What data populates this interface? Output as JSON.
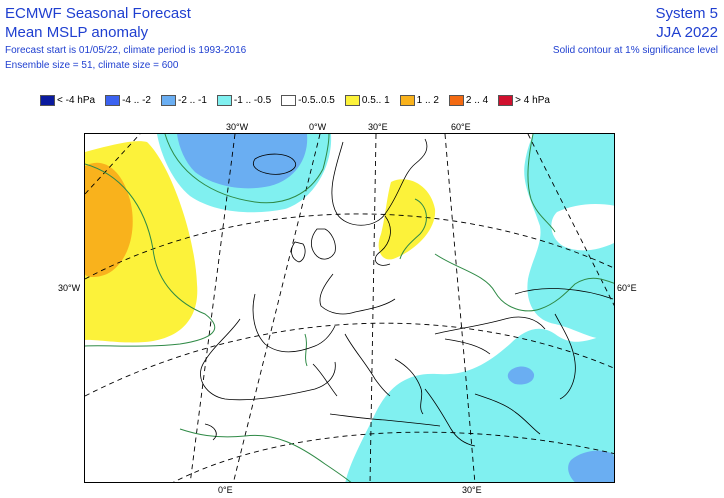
{
  "header": {
    "title": "ECMWF Seasonal Forecast",
    "subtitle": "Mean MSLP anomaly",
    "forecast_info": "Forecast start is 01/05/22, climate period is 1993-2016",
    "ensemble_info": "Ensemble size = 51, climate size = 600",
    "system": "System 5",
    "season": "JJA 2022",
    "significance_note": "Solid contour at 1% significance level"
  },
  "legend": [
    {
      "label": "< -4 hPa",
      "color": "#0a1a9e"
    },
    {
      "label": "-4 .. -2",
      "color": "#3b62f0"
    },
    {
      "label": "-2 .. -1",
      "color": "#6aaef2"
    },
    {
      "label": "-1 .. -0.5",
      "color": "#80f0f0"
    },
    {
      "label": "-0.5..0.5",
      "color": "#ffffff"
    },
    {
      "label": "0.5.. 1",
      "color": "#fcf23a"
    },
    {
      "label": "1 .. 2",
      "color": "#f9b21c"
    },
    {
      "label": "2 .. 4",
      "color": "#f36a12"
    },
    {
      "label": "> 4 hPa",
      "color": "#d0102e"
    }
  ],
  "graticule_labels": {
    "top": [
      "30°W",
      "0°W",
      "30°E",
      "60°E"
    ],
    "left": "30°W",
    "right": "60°E",
    "bottom": [
      "0°E",
      "30°E"
    ]
  }
}
